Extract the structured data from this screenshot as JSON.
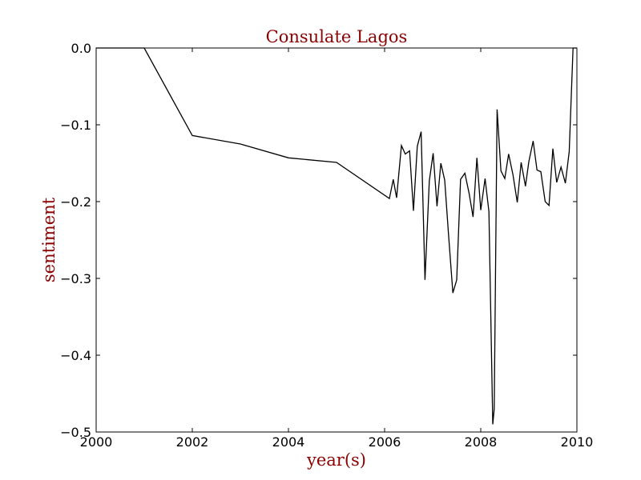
{
  "chart_data": {
    "type": "line",
    "title": "Consulate Lagos",
    "xlabel": "year(s)",
    "ylabel": "sentiment",
    "xlim": [
      2000,
      2010
    ],
    "ylim": [
      -0.5,
      0.0
    ],
    "x_ticks": [
      "2000",
      "2002",
      "2004",
      "2006",
      "2008",
      "2010"
    ],
    "y_ticks": [
      "0.0",
      "−0.1",
      "−0.2",
      "−0.3",
      "−0.4",
      "−0.5"
    ],
    "grid": false,
    "line_color": "#000000",
    "text_color": "#8b0000",
    "series": [
      {
        "x": [
          2000.0,
          2001.0,
          2002.0,
          2003.0,
          2004.0,
          2005.0,
          2006.1,
          2006.18,
          2006.25,
          2006.35,
          2006.43,
          2006.52,
          2006.6,
          2006.68,
          2006.76,
          2006.84,
          2006.93,
          2007.01,
          2007.09,
          2007.17,
          2007.25,
          2007.33,
          2007.42,
          2007.5,
          2007.58,
          2007.67,
          2007.76,
          2007.84,
          2007.92,
          2008.0,
          2008.09,
          2008.17,
          2008.25,
          2008.28,
          2008.34,
          2008.42,
          2008.5,
          2008.58,
          2008.67,
          2008.76,
          2008.84,
          2008.93,
          2009.0,
          2009.09,
          2009.17,
          2009.25,
          2009.34,
          2009.42,
          2009.5,
          2009.58,
          2009.67,
          2009.76,
          2009.84,
          2009.92,
          2010.0
        ],
        "y": [
          0.0,
          0.0,
          -0.114,
          -0.125,
          -0.143,
          -0.149,
          -0.196,
          -0.171,
          -0.195,
          -0.127,
          -0.138,
          -0.134,
          -0.212,
          -0.128,
          -0.109,
          -0.302,
          -0.173,
          -0.137,
          -0.206,
          -0.15,
          -0.172,
          -0.243,
          -0.319,
          -0.302,
          -0.171,
          -0.163,
          -0.19,
          -0.22,
          -0.143,
          -0.211,
          -0.17,
          -0.213,
          -0.49,
          -0.47,
          -0.08,
          -0.16,
          -0.17,
          -0.138,
          -0.165,
          -0.201,
          -0.149,
          -0.18,
          -0.148,
          -0.121,
          -0.159,
          -0.161,
          -0.2,
          -0.205,
          -0.131,
          -0.175,
          -0.155,
          -0.176,
          -0.135,
          0.0,
          0.0
        ]
      }
    ]
  }
}
